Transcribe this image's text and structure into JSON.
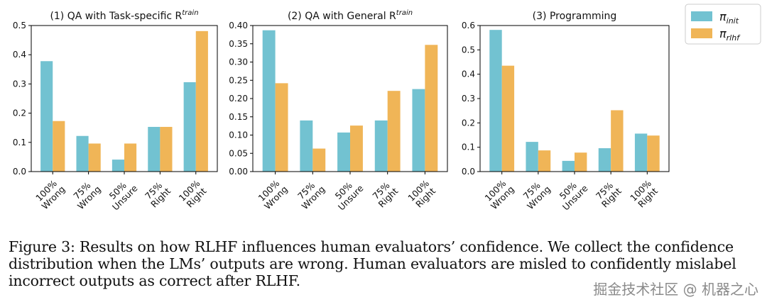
{
  "chart_data": [
    {
      "type": "bar",
      "title": "(1) QA with Task-specific R",
      "title_superscript": "train",
      "categories": [
        [
          "100%",
          "Wrong"
        ],
        [
          "75%",
          "Wrong"
        ],
        [
          "50%",
          "Unsure"
        ],
        [
          "75%",
          "Right"
        ],
        [
          "100%",
          "Right"
        ]
      ],
      "ylim": [
        0,
        0.5
      ],
      "yticks": [
        0.0,
        0.1,
        0.2,
        0.3,
        0.4,
        0.5
      ],
      "ytick_labels": [
        "0.0",
        "0.1",
        "0.2",
        "0.3",
        "0.4",
        "0.5"
      ],
      "series": [
        {
          "key": "pi_init",
          "values": [
            0.378,
            0.122,
            0.041,
            0.153,
            0.306
          ]
        },
        {
          "key": "pi_rlhf",
          "values": [
            0.173,
            0.096,
            0.096,
            0.153,
            0.481
          ]
        }
      ]
    },
    {
      "type": "bar",
      "title": "(2) QA with General R",
      "title_superscript": "train",
      "categories": [
        [
          "100%",
          "Wrong"
        ],
        [
          "75%",
          "Wrong"
        ],
        [
          "50%",
          "Unsure"
        ],
        [
          "75%",
          "Right"
        ],
        [
          "100%",
          "Right"
        ]
      ],
      "ylim": [
        0,
        0.4
      ],
      "yticks": [
        0.0,
        0.05,
        0.1,
        0.15,
        0.2,
        0.25,
        0.3,
        0.35,
        0.4
      ],
      "ytick_labels": [
        "0.00",
        "0.05",
        "0.10",
        "0.15",
        "0.20",
        "0.25",
        "0.30",
        "0.35",
        "0.40"
      ],
      "series": [
        {
          "key": "pi_init",
          "values": [
            0.387,
            0.14,
            0.107,
            0.14,
            0.226
          ]
        },
        {
          "key": "pi_rlhf",
          "values": [
            0.242,
            0.063,
            0.126,
            0.221,
            0.347
          ]
        }
      ]
    },
    {
      "type": "bar",
      "title": "(3) Programming",
      "title_superscript": "",
      "categories": [
        [
          "100%",
          "Wrong"
        ],
        [
          "75%",
          "Wrong"
        ],
        [
          "50%",
          "Unsure"
        ],
        [
          "75%",
          "Right"
        ],
        [
          "100%",
          "Right"
        ]
      ],
      "ylim": [
        0,
        0.6
      ],
      "yticks": [
        0.0,
        0.1,
        0.2,
        0.3,
        0.4,
        0.5,
        0.6
      ],
      "ytick_labels": [
        "0.0",
        "0.1",
        "0.2",
        "0.3",
        "0.4",
        "0.5",
        "0.6"
      ],
      "series": [
        {
          "key": "pi_init",
          "values": [
            0.582,
            0.122,
            0.044,
            0.096,
            0.156
          ]
        },
        {
          "key": "pi_rlhf",
          "values": [
            0.435,
            0.087,
            0.078,
            0.252,
            0.148
          ]
        }
      ]
    }
  ],
  "legend": {
    "placement": "top-right",
    "entries": [
      {
        "key": "pi_init",
        "symbol": "π",
        "subscript": "init",
        "color": "#72c2d1"
      },
      {
        "key": "pi_rlhf",
        "symbol": "π",
        "subscript": "rlhf",
        "color": "#f0b557"
      }
    ]
  },
  "caption": "Figure 3: Results on how RLHF influences human evaluators’ confidence. We collect the confidence distribution when the LMs’ outputs are wrong. Human evaluators are misled to confidently mislabel incorrect outputs as correct after RLHF.",
  "watermark": "掘金技术社区 @ 机器之心"
}
